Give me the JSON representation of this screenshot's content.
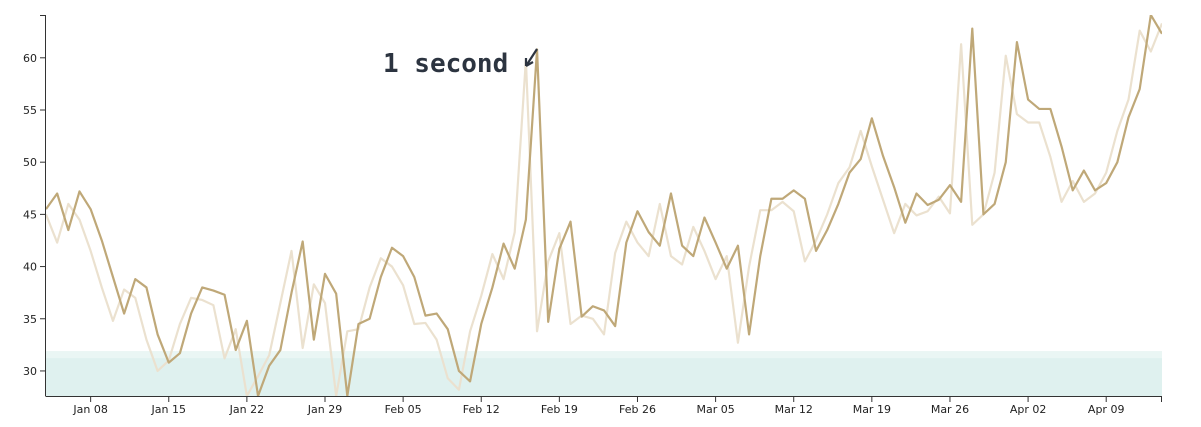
{
  "chart_data": {
    "type": "line",
    "annotation": "1 second",
    "x": [
      "Jan 04",
      "Jan 05",
      "Jan 06",
      "Jan 07",
      "Jan 08",
      "Jan 09",
      "Jan 10",
      "Jan 11",
      "Jan 12",
      "Jan 13",
      "Jan 14",
      "Jan 15",
      "Jan 16",
      "Jan 17",
      "Jan 18",
      "Jan 19",
      "Jan 20",
      "Jan 21",
      "Jan 22",
      "Jan 23",
      "Jan 24",
      "Jan 25",
      "Jan 26",
      "Jan 27",
      "Jan 28",
      "Jan 29",
      "Jan 30",
      "Jan 31",
      "Feb 01",
      "Feb 02",
      "Feb 03",
      "Feb 04",
      "Feb 05",
      "Feb 06",
      "Feb 07",
      "Feb 08",
      "Feb 09",
      "Feb 10",
      "Feb 11",
      "Feb 12",
      "Feb 13",
      "Feb 14",
      "Feb 15",
      "Feb 16",
      "Feb 17",
      "Feb 18",
      "Feb 19",
      "Feb 20",
      "Feb 21",
      "Feb 22",
      "Feb 23",
      "Feb 24",
      "Feb 25",
      "Feb 26",
      "Feb 27",
      "Feb 28",
      "Mar 01",
      "Mar 02",
      "Mar 03",
      "Mar 04",
      "Mar 05",
      "Mar 06",
      "Mar 07",
      "Mar 08",
      "Mar 09",
      "Mar 10",
      "Mar 11",
      "Mar 12",
      "Mar 13",
      "Mar 14",
      "Mar 15",
      "Mar 16",
      "Mar 17",
      "Mar 18",
      "Mar 19",
      "Mar 20",
      "Mar 21",
      "Mar 22",
      "Mar 23",
      "Mar 24",
      "Mar 25",
      "Mar 26",
      "Mar 27",
      "Mar 28",
      "Mar 29",
      "Mar 30",
      "Mar 31",
      "Apr 01",
      "Apr 02",
      "Apr 03",
      "Apr 04",
      "Apr 05",
      "Apr 06",
      "Apr 07",
      "Apr 08",
      "Apr 09",
      "Apr 10",
      "Apr 11",
      "Apr 12",
      "Apr 13",
      "Apr 14"
    ],
    "series": [
      {
        "color": "#ebe1cf",
        "values": [
          45,
          42.3,
          46,
          44.5,
          41.5,
          38,
          34.8,
          37.8,
          37,
          33,
          30,
          31,
          34.5,
          37,
          36.8,
          36.3,
          31.2,
          34,
          27.6,
          29.5,
          31.5,
          36.5,
          41.5,
          32.2,
          38.3,
          36.5,
          27.6,
          33.8,
          34,
          38,
          40.8,
          40,
          38.2,
          34.5,
          34.6,
          33,
          29.3,
          28.2,
          33.8,
          37.2,
          41.2,
          38.8,
          43.3,
          59.8,
          33.8,
          40.5,
          43.2,
          34.5,
          35.3,
          35,
          33.5,
          41.3,
          44.3,
          42.3,
          41,
          46,
          41,
          40.2,
          43.8,
          41.5,
          38.8,
          41,
          32.7,
          40,
          45.4,
          45.4,
          46.2,
          45.3,
          40.5,
          42.5,
          45,
          48,
          49.5,
          53,
          49.6,
          46.4,
          43.2,
          46,
          44.9,
          45.3,
          46.7,
          45.1,
          61.3,
          44,
          45,
          49,
          60.2,
          54.6,
          53.8,
          53.8,
          50.5,
          46.2,
          48.2,
          46.2,
          47,
          49,
          53,
          56,
          62.6,
          60.6,
          63.3
        ]
      },
      {
        "color": "#bfa878",
        "values": [
          45.5,
          47,
          43.5,
          47.2,
          45.5,
          42.5,
          39,
          35.5,
          38.8,
          38,
          33.5,
          30.8,
          31.7,
          35.5,
          38,
          37.7,
          37.3,
          32,
          34.8,
          27.6,
          30.5,
          32,
          37.5,
          42.4,
          33,
          39.3,
          37.4,
          27.6,
          34.5,
          35,
          39,
          41.8,
          41,
          39,
          35.3,
          35.5,
          34,
          30,
          29,
          34.5,
          38,
          42.2,
          39.8,
          44.5,
          60.8,
          34.7,
          41.7,
          44.3,
          35.2,
          36.2,
          35.8,
          34.3,
          42.3,
          45.3,
          43.3,
          42,
          47,
          42,
          41,
          44.7,
          42.3,
          39.8,
          42,
          33.5,
          41,
          46.5,
          46.5,
          47.3,
          46.5,
          41.5,
          43.5,
          46,
          49,
          50.3,
          54.2,
          50.6,
          47.6,
          44.2,
          47,
          45.9,
          46.4,
          47.8,
          46.2,
          62.8,
          45,
          46,
          50,
          61.5,
          56,
          55.1,
          55.1,
          51.5,
          47.3,
          49.2,
          47.3,
          48,
          50,
          54.3,
          57,
          64.1,
          62.3
        ]
      }
    ],
    "band": {
      "from": 27.6,
      "to": 31.9,
      "color": "#dff1ef"
    },
    "xlim": [
      "Jan 04",
      "Apr 14"
    ],
    "xticks": [
      "Jan 08",
      "Jan 15",
      "Jan 22",
      "Jan 29",
      "Feb 05",
      "Feb 12",
      "Feb 19",
      "Feb 26",
      "Mar 05",
      "Mar 12",
      "Mar 19",
      "Mar 26",
      "Apr 02",
      "Apr 09"
    ],
    "ylim": [
      27.6,
      64.1
    ],
    "yticks": [
      30,
      35,
      40,
      45,
      50,
      55,
      60
    ]
  }
}
